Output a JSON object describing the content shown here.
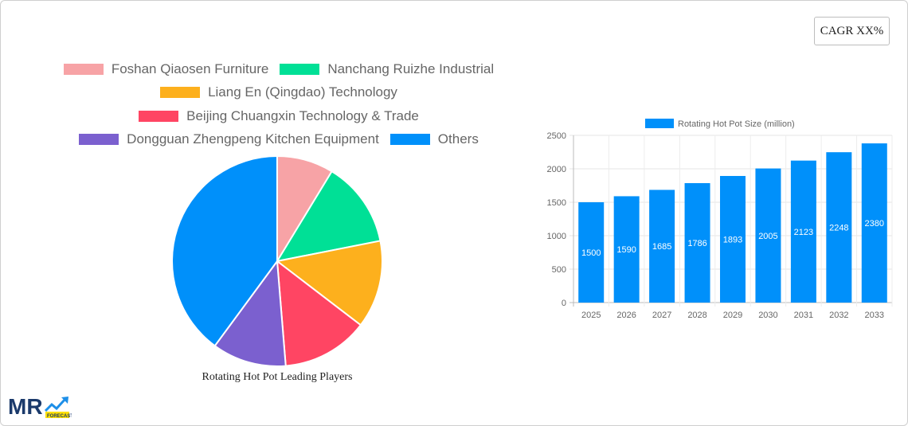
{
  "cagr_badge": {
    "label": "CAGR XX%"
  },
  "chart_data": [
    {
      "type": "pie",
      "title": "Rotating Hot Pot Leading Players",
      "legend_position": "top",
      "categories": [
        "Foshan Qiaosen Furniture",
        "Nanchang Ruizhe Industrial",
        "Liang En (Qingdao) Technology",
        "Beijing Chuangxin Technology & Trade",
        "Dongguan Zhengpeng Kitchen Equipment",
        "Others"
      ],
      "values": [
        8.7,
        13.2,
        13.5,
        13.3,
        11.4,
        39.9
      ],
      "colors": [
        "#f7a3a6",
        "#00e096",
        "#fdb01d",
        "#ff4563",
        "#7b60cf",
        "#0090fa"
      ]
    },
    {
      "type": "bar",
      "title": "",
      "legend": [
        "Rotating Hot Pot Size (million)"
      ],
      "legend_position": "top",
      "categories": [
        "2025",
        "2026",
        "2027",
        "2028",
        "2029",
        "2030",
        "2031",
        "2032",
        "2033"
      ],
      "series": [
        {
          "name": "Rotating Hot Pot Size (million)",
          "values": [
            1500,
            1590,
            1685,
            1786,
            1893,
            2005,
            2123,
            2248,
            2380
          ],
          "color": "#0090fa"
        }
      ],
      "xlabel": "",
      "ylabel": "",
      "ylim": [
        0,
        2500
      ],
      "yticks": [
        0,
        500,
        1000,
        1500,
        2000,
        2500
      ],
      "grid": true,
      "data_labels": true
    }
  ],
  "legend": {
    "rows": [
      [
        {
          "label": "Foshan Qiaosen Furniture",
          "color": "#f7a3a6"
        },
        {
          "label": "Nanchang Ruizhe Industrial",
          "color": "#00e096"
        }
      ],
      [
        {
          "label": "Liang En (Qingdao) Technology",
          "color": "#fdb01d"
        }
      ],
      [
        {
          "label": "Beijing Chuangxin Technology & Trade",
          "color": "#ff4563"
        }
      ],
      [
        {
          "label": "Dongguan Zhengpeng Kitchen Equipment",
          "color": "#7b60cf"
        },
        {
          "label": "Others",
          "color": "#0090fa"
        }
      ]
    ]
  },
  "logo": {
    "text": "MR",
    "sub": "FORECAST"
  }
}
